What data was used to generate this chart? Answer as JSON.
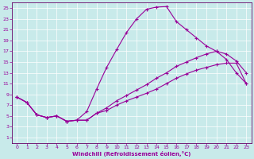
{
  "xlabel": "Windchill (Refroidissement éolien,°C)",
  "bg_color": "#c8eaea",
  "line_color": "#990099",
  "grid_color": "#b0d8d8",
  "spine_color": "#660066",
  "xlim": [
    -0.5,
    23.5
  ],
  "ylim": [
    0,
    26
  ],
  "xticks": [
    0,
    1,
    2,
    3,
    4,
    5,
    6,
    7,
    8,
    9,
    10,
    11,
    12,
    13,
    14,
    15,
    16,
    17,
    18,
    19,
    20,
    21,
    22,
    23
  ],
  "yticks": [
    1,
    3,
    5,
    7,
    9,
    11,
    13,
    15,
    17,
    19,
    21,
    23,
    25
  ],
  "line1_x": [
    0,
    1,
    2,
    3,
    4,
    5,
    6,
    7,
    8,
    9,
    10,
    11,
    12,
    13,
    14,
    15,
    16,
    17,
    18,
    19,
    20,
    21,
    22,
    23
  ],
  "line1_y": [
    8.5,
    7.5,
    5.2,
    4.7,
    5.0,
    4.0,
    4.2,
    5.8,
    10.0,
    14.0,
    17.3,
    20.5,
    23.0,
    24.8,
    25.2,
    25.3,
    22.5,
    21.0,
    19.5,
    18.0,
    17.0,
    16.5,
    15.2,
    13.0
  ],
  "line2_x": [
    0,
    1,
    2,
    3,
    4,
    5,
    6,
    7,
    8,
    9,
    10,
    11,
    12,
    13,
    14,
    15,
    16,
    17,
    18,
    19,
    20,
    21,
    22,
    23
  ],
  "line2_y": [
    8.5,
    7.5,
    5.2,
    4.7,
    5.0,
    4.0,
    4.2,
    4.2,
    5.5,
    6.5,
    7.8,
    8.8,
    9.8,
    10.8,
    12.0,
    13.0,
    14.2,
    15.0,
    15.8,
    16.5,
    17.0,
    15.5,
    13.0,
    11.0
  ],
  "line3_x": [
    0,
    1,
    2,
    3,
    4,
    5,
    6,
    7,
    8,
    9,
    10,
    11,
    12,
    13,
    14,
    15,
    16,
    17,
    18,
    19,
    20,
    21,
    22,
    23
  ],
  "line3_y": [
    8.5,
    7.5,
    5.2,
    4.7,
    5.0,
    4.0,
    4.2,
    4.2,
    5.5,
    6.0,
    7.0,
    7.8,
    8.5,
    9.2,
    10.0,
    11.0,
    12.0,
    12.8,
    13.5,
    14.0,
    14.5,
    14.8,
    14.8,
    11.0
  ]
}
